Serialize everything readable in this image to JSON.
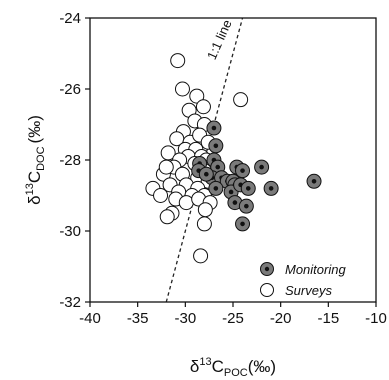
{
  "chart_data": {
    "type": "scatter",
    "xlim": [
      -40,
      -10
    ],
    "ylim": [
      -32,
      -24
    ],
    "x_ticks": [
      "-40",
      "-35",
      "-30",
      "-25",
      "-20",
      "-15",
      "-10"
    ],
    "y_ticks": [
      "-24",
      "-26",
      "-28",
      "-30",
      "-32"
    ],
    "xlabel": {
      "delta": "δ",
      "sup": "13",
      "main": "C",
      "sub": "POC",
      "unit": "(‰)"
    },
    "ylabel": {
      "delta": "δ",
      "sup": "13",
      "main": "C",
      "sub": "DOC",
      "unit": "(‰)"
    },
    "reference_line": {
      "label": "1:1 line",
      "points": [
        [
          -32,
          -32
        ],
        [
          -24,
          -24
        ]
      ]
    },
    "legend_position": "bottom-right",
    "series": [
      {
        "name": "Monitoring",
        "color": "#7a7a7a",
        "points": [
          [
            -27.0,
            -27.1
          ],
          [
            -26.8,
            -27.6
          ],
          [
            -27.0,
            -28.0
          ],
          [
            -26.6,
            -28.2
          ],
          [
            -27.2,
            -28.5
          ],
          [
            -28.5,
            -28.1
          ],
          [
            -28.6,
            -28.3
          ],
          [
            -27.8,
            -28.4
          ],
          [
            -26.2,
            -28.5
          ],
          [
            -25.6,
            -28.6
          ],
          [
            -26.8,
            -28.8
          ],
          [
            -24.6,
            -28.2
          ],
          [
            -24.0,
            -28.3
          ],
          [
            -22.0,
            -28.2
          ],
          [
            -25.0,
            -28.6
          ],
          [
            -24.8,
            -28.7
          ],
          [
            -25.2,
            -28.9
          ],
          [
            -24.2,
            -28.7
          ],
          [
            -23.4,
            -28.8
          ],
          [
            -21.0,
            -28.8
          ],
          [
            -24.8,
            -29.2
          ],
          [
            -23.6,
            -29.3
          ],
          [
            -16.5,
            -28.6
          ],
          [
            -24.0,
            -29.8
          ]
        ]
      },
      {
        "name": "Surveys",
        "color": "#ffffff",
        "points": [
          [
            -30.8,
            -25.2
          ],
          [
            -30.3,
            -26.0
          ],
          [
            -28.8,
            -26.2
          ],
          [
            -29.6,
            -26.6
          ],
          [
            -28.1,
            -26.5
          ],
          [
            -24.2,
            -26.3
          ],
          [
            -29.0,
            -26.9
          ],
          [
            -30.2,
            -27.2
          ],
          [
            -28.0,
            -27.0
          ],
          [
            -30.9,
            -27.4
          ],
          [
            -29.5,
            -27.5
          ],
          [
            -28.5,
            -27.3
          ],
          [
            -27.6,
            -27.5
          ],
          [
            -30.0,
            -27.7
          ],
          [
            -28.9,
            -27.7
          ],
          [
            -31.8,
            -27.8
          ],
          [
            -29.7,
            -27.9
          ],
          [
            -28.3,
            -27.9
          ],
          [
            -30.6,
            -28.0
          ],
          [
            -27.8,
            -28.0
          ],
          [
            -31.2,
            -28.2
          ],
          [
            -29.0,
            -28.1
          ],
          [
            -28.0,
            -28.3
          ],
          [
            -32.3,
            -28.4
          ],
          [
            -30.3,
            -28.4
          ],
          [
            -28.7,
            -28.5
          ],
          [
            -27.6,
            -28.6
          ],
          [
            -31.6,
            -28.7
          ],
          [
            -29.9,
            -28.7
          ],
          [
            -28.7,
            -28.8
          ],
          [
            -33.4,
            -28.8
          ],
          [
            -30.7,
            -28.9
          ],
          [
            -29.3,
            -29.0
          ],
          [
            -28.0,
            -29.0
          ],
          [
            -32.6,
            -29.0
          ],
          [
            -31.0,
            -29.1
          ],
          [
            -29.9,
            -29.2
          ],
          [
            -28.6,
            -29.1
          ],
          [
            -27.4,
            -29.2
          ],
          [
            -31.4,
            -29.5
          ],
          [
            -27.9,
            -29.4
          ],
          [
            -31.9,
            -29.6
          ],
          [
            -28.0,
            -29.8
          ],
          [
            -28.4,
            -30.7
          ],
          [
            -32.0,
            -28.2
          ]
        ]
      }
    ]
  }
}
